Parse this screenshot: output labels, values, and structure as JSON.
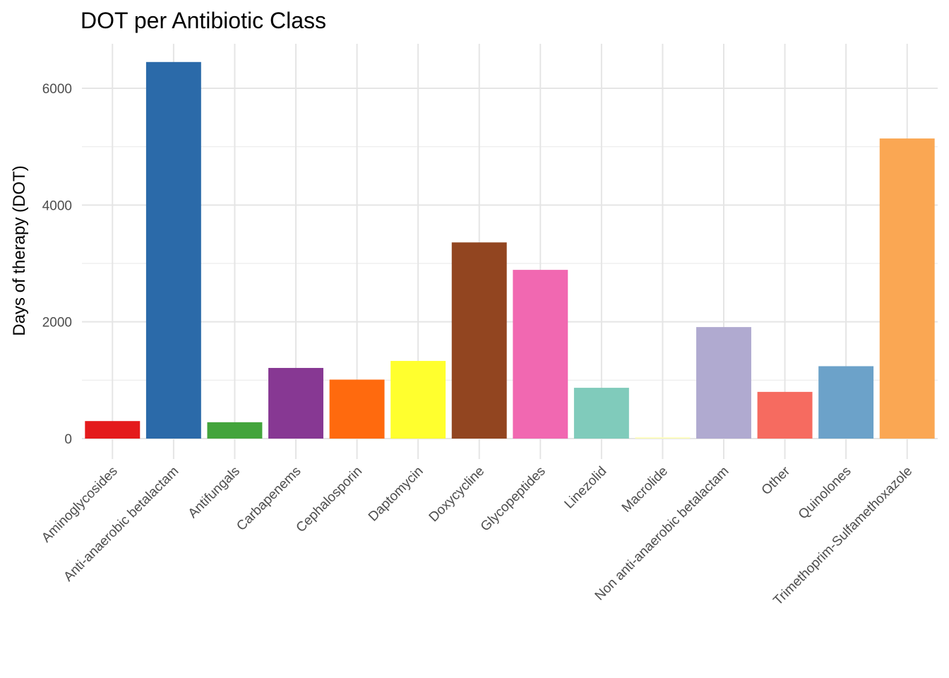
{
  "chart_data": {
    "type": "bar",
    "title": "DOT per Antibiotic Class",
    "xlabel": "",
    "ylabel": "Days of therapy (DOT)",
    "ylim": [
      -80,
      6750
    ],
    "yticks": [
      0,
      2000,
      4000,
      6000
    ],
    "grid": true,
    "legend": "none",
    "categories": [
      "Aminoglycosides",
      "Anti-anaerobic betalactam",
      "Antifungals",
      "Carbapenems",
      "Cephalosporin",
      "Daptomycin",
      "Doxycycline",
      "Glycopeptides",
      "Linezolid",
      "Macrolide",
      "Non anti-anaerobic betalactam",
      "Other",
      "Quinolones",
      "Trimethoprim-Sulfamethoxazole"
    ],
    "values": [
      300,
      6450,
      280,
      1210,
      1010,
      1330,
      3360,
      2890,
      870,
      20,
      1910,
      800,
      1240,
      5140
    ],
    "colors": [
      "#E41A1C",
      "#2B6AA9",
      "#43A43C",
      "#873893",
      "#FF6A0E",
      "#FFFF2E",
      "#924520",
      "#F168B1",
      "#80CBBB",
      "#FFFFB3",
      "#B0AAD0",
      "#F66B60",
      "#6CA2C9",
      "#FAA753"
    ]
  }
}
